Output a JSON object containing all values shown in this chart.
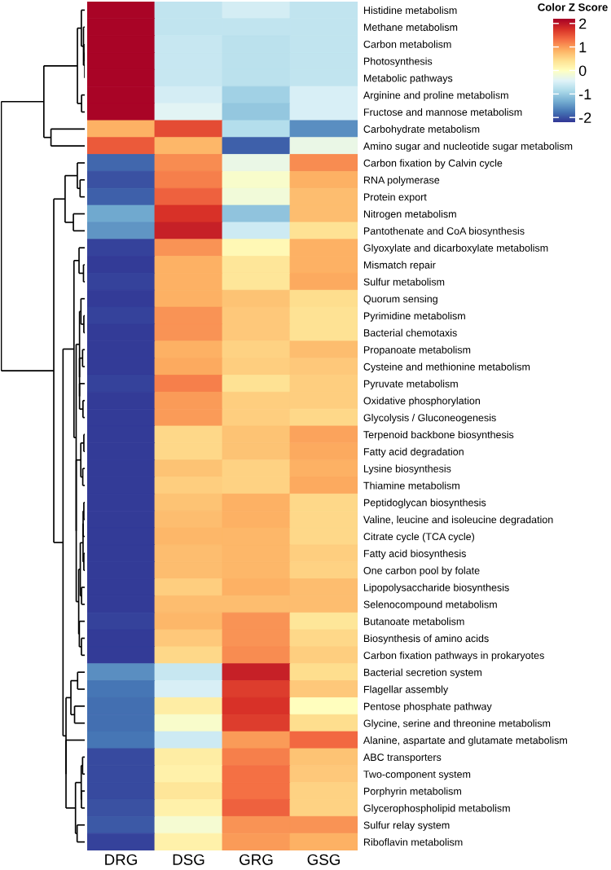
{
  "chart_data": {
    "type": "heatmap",
    "clabel": "Color Z Score",
    "categories": [
      "DRG",
      "DSG",
      "GRG",
      "GSG"
    ],
    "y_categories": [
      "Histidine metabolism",
      "Methane metabolism",
      "Carbon metabolism",
      "Photosynthesis",
      "Metabolic pathways",
      "Arginine and proline metabolism",
      "Fructose and mannose metabolism",
      "Carbohydrate metabolism",
      "Amino sugar and nucleotide sugar metabolism",
      "Carbon fixation by Calvin cycle",
      "RNA polymerase",
      "Protein export",
      "Nitrogen metabolism",
      "Pantothenate and CoA biosynthesis",
      "Glyoxylate and dicarboxylate metabolism",
      "Mismatch repair",
      "Sulfur metabolism",
      "Quorum sensing",
      "Pyrimidine metabolism",
      "Bacterial chemotaxis",
      "Propanoate metabolism",
      "Cysteine and methionine metabolism",
      "Pyruvate metabolism",
      "Oxidative phosphorylation",
      "Glycolysis / Gluconeogenesis",
      "Terpenoid backbone biosynthesis",
      "Fatty acid degradation",
      "Lysine biosynthesis",
      "Thiamine metabolism",
      "Peptidoglycan biosynthesis",
      "Valine, leucine and isoleucine degradation",
      "Citrate cycle (TCA cycle)",
      "Fatty acid biosynthesis",
      "One carbon pool by folate",
      "Lipopolysaccharide biosynthesis",
      "Selenocompound metabolism",
      "Butanoate metabolism",
      "Biosynthesis of amino acids",
      "Carbon fixation pathways in prokaryotes",
      "Bacterial secretion system",
      "Flagellar assembly",
      "Pentose phosphate pathway",
      "Glycine, serine and threonine metabolism",
      "Alanine, aspartate and glutamate metabolism",
      "ABC transporters",
      "Two-component system",
      "Porphyrin metabolism",
      "Glycerophospholipid metabolism",
      "Sulfur relay system",
      "Riboflavin metabolism"
    ],
    "cells": [
      [
        2.15,
        -0.7,
        -0.55,
        -0.7
      ],
      [
        2.15,
        -0.7,
        -0.7,
        -0.7
      ],
      [
        2.15,
        -0.65,
        -0.75,
        -0.7
      ],
      [
        2.15,
        -0.65,
        -0.75,
        -0.7
      ],
      [
        2.15,
        -0.65,
        -0.75,
        -0.7
      ],
      [
        2.15,
        -0.55,
        -0.95,
        -0.5
      ],
      [
        2.15,
        -0.4,
        -1.05,
        -0.5
      ],
      [
        0.85,
        1.55,
        -0.8,
        -1.55
      ],
      [
        1.45,
        0.8,
        -1.9,
        -0.3
      ],
      [
        -1.85,
        1.1,
        -0.3,
        1.1
      ],
      [
        -2.0,
        1.2,
        -0.1,
        0.85
      ],
      [
        -1.9,
        1.4,
        -0.2,
        0.75
      ],
      [
        -1.35,
        1.75,
        -1.1,
        0.75
      ],
      [
        -1.5,
        1.9,
        -0.6,
        0.4
      ],
      [
        -2.1,
        1.05,
        0.1,
        0.85
      ],
      [
        -2.15,
        0.85,
        0.35,
        0.85
      ],
      [
        -2.1,
        0.85,
        0.35,
        0.9
      ],
      [
        -2.15,
        0.85,
        0.7,
        0.45
      ],
      [
        -2.1,
        1.05,
        0.65,
        0.4
      ],
      [
        -2.15,
        1.05,
        0.65,
        0.4
      ],
      [
        -2.15,
        0.85,
        0.55,
        0.75
      ],
      [
        -2.15,
        0.9,
        0.6,
        0.65
      ],
      [
        -2.1,
        1.2,
        0.4,
        0.6
      ],
      [
        -2.15,
        1.0,
        0.6,
        0.6
      ],
      [
        -2.15,
        1.0,
        0.6,
        0.5
      ],
      [
        -2.15,
        0.5,
        0.7,
        0.95
      ],
      [
        -2.15,
        0.5,
        0.7,
        0.9
      ],
      [
        -2.15,
        0.7,
        0.55,
        0.85
      ],
      [
        -2.15,
        0.6,
        0.55,
        0.9
      ],
      [
        -2.15,
        0.7,
        0.85,
        0.5
      ],
      [
        -2.15,
        0.75,
        0.85,
        0.5
      ],
      [
        -2.15,
        0.8,
        0.8,
        0.5
      ],
      [
        -2.15,
        0.75,
        0.8,
        0.6
      ],
      [
        -2.15,
        0.75,
        0.8,
        0.55
      ],
      [
        -2.15,
        0.6,
        0.85,
        0.75
      ],
      [
        -2.15,
        0.75,
        0.75,
        0.75
      ],
      [
        -2.1,
        0.8,
        1.05,
        0.35
      ],
      [
        -2.15,
        0.65,
        1.05,
        0.5
      ],
      [
        -2.15,
        0.5,
        1.1,
        0.6
      ],
      [
        -1.55,
        -0.65,
        1.9,
        0.45
      ],
      [
        -1.75,
        -0.5,
        1.65,
        0.65
      ],
      [
        -1.8,
        0.25,
        1.75,
        0.0
      ],
      [
        -1.8,
        -0.1,
        1.65,
        0.45
      ],
      [
        -1.75,
        -0.6,
        1.0,
        1.35
      ],
      [
        -2.05,
        0.25,
        1.2,
        0.7
      ],
      [
        -2.05,
        0.2,
        1.3,
        0.65
      ],
      [
        -2.05,
        0.35,
        1.3,
        0.55
      ],
      [
        -2.0,
        0.2,
        1.4,
        0.55
      ],
      [
        -1.95,
        -0.15,
        1.05,
        1.05
      ],
      [
        -2.1,
        0.2,
        1.0,
        0.85
      ]
    ],
    "clim": [
      -2.2,
      2.2
    ],
    "cticks": [
      -2,
      -1,
      0,
      1,
      2
    ]
  }
}
